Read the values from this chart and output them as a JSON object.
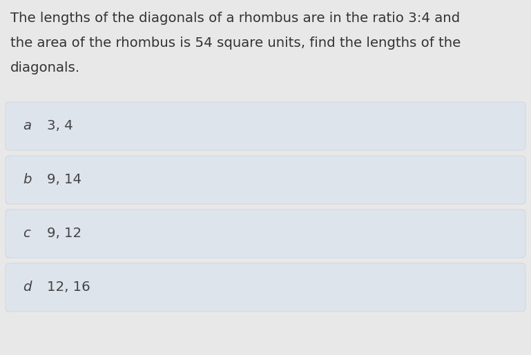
{
  "question_lines": [
    "The lengths of the diagonals of a rhombus are in the ratio 3:4 and",
    "the area of the rhombus is 54 square units, find the lengths of the",
    "diagonals."
  ],
  "options": [
    {
      "label": "a",
      "text": "3, 4"
    },
    {
      "label": "b",
      "text": "9, 14"
    },
    {
      "label": "c",
      "text": "9, 12"
    },
    {
      "label": "d",
      "text": "12, 16"
    }
  ],
  "page_bg": "#e8e8e8",
  "option_bg": "#dde4eb",
  "option_border": "#c9d0d8",
  "question_color": "#333333",
  "option_text_color": "#444444",
  "label_color": "#444444",
  "question_fontsize": 14.2,
  "option_fontsize": 14.2,
  "label_fontsize": 14.2,
  "fig_width": 7.69,
  "fig_height": 5.15
}
